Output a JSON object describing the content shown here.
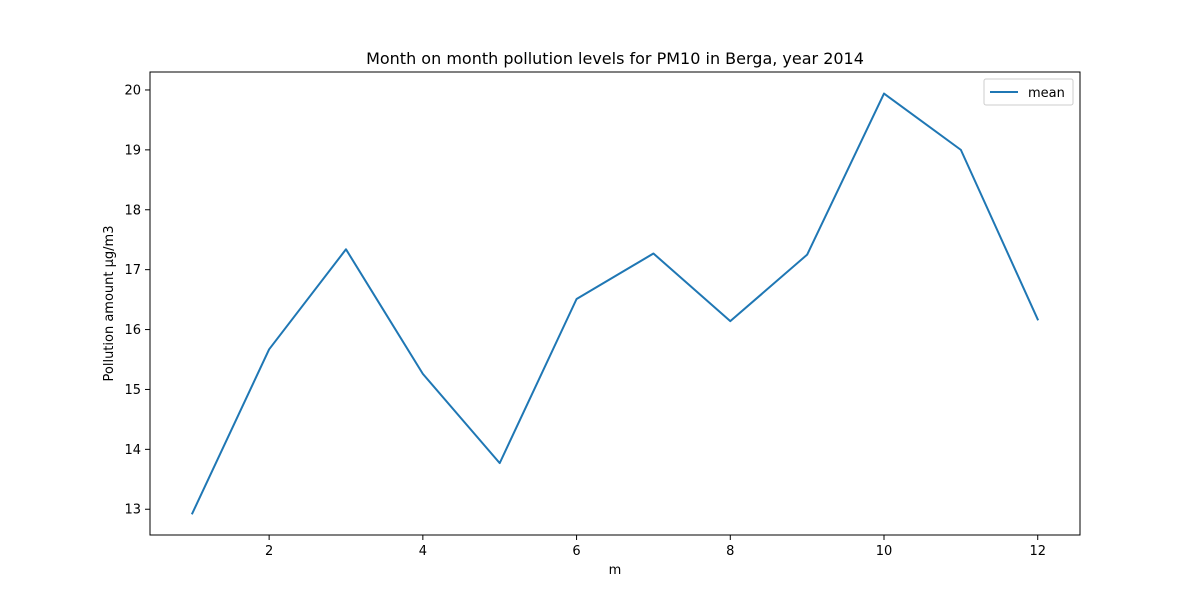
{
  "chart_data": {
    "type": "line",
    "title": "Month on month pollution levels for PM10 in Berga, year 2014",
    "xlabel": "m",
    "ylabel": "Pollution amount µg/m3",
    "xlim": [
      0.45,
      12.55
    ],
    "ylim": [
      12.57,
      20.3
    ],
    "xticks": [
      2,
      4,
      6,
      8,
      10,
      12
    ],
    "yticks": [
      13,
      14,
      15,
      16,
      17,
      18,
      19,
      20
    ],
    "grid": false,
    "legend_position": "top-right",
    "series": [
      {
        "name": "mean",
        "color": "#1f77b4",
        "x": [
          1,
          2,
          3,
          4,
          5,
          6,
          7,
          8,
          9,
          10,
          11,
          12
        ],
        "y": [
          12.93,
          15.67,
          17.34,
          15.26,
          13.77,
          16.51,
          17.27,
          16.14,
          17.25,
          19.94,
          19.0,
          16.17
        ]
      }
    ]
  }
}
